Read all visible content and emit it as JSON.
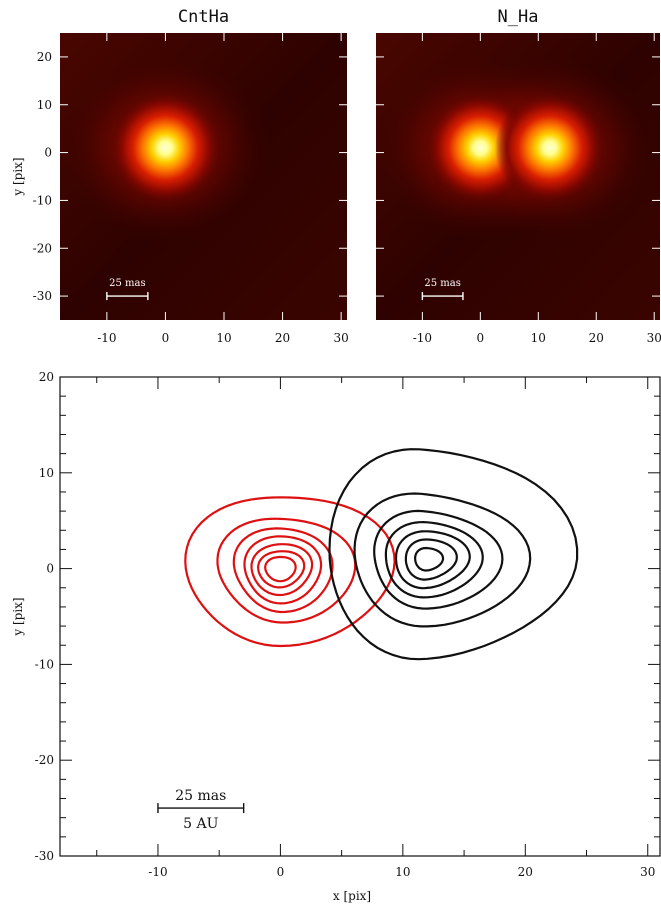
{
  "chart_data": [
    {
      "type": "heatmap",
      "title": "CntHa",
      "xlabel": "",
      "ylabel": "y [pix]",
      "xlim": [
        -18,
        31
      ],
      "ylim": [
        -35,
        25
      ],
      "xticks": [
        -10,
        0,
        10,
        20,
        30
      ],
      "yticks": [
        -30,
        -20,
        -10,
        0,
        10,
        20
      ],
      "sources": [
        {
          "x": 0,
          "y": 1,
          "peak": 1.0
        }
      ],
      "scale_bar": {
        "label": "25 mas",
        "x_start": -10,
        "x_end": -3,
        "y": -30
      }
    },
    {
      "type": "heatmap",
      "title": "N_Ha",
      "xlabel": "",
      "ylabel": "",
      "xlim": [
        -18,
        31
      ],
      "ylim": [
        -35,
        25
      ],
      "xticks": [
        -10,
        0,
        10,
        20,
        30
      ],
      "yticks": [
        -30,
        -20,
        -10,
        0,
        10,
        20
      ],
      "sources": [
        {
          "x": 0,
          "y": 1,
          "peak": 0.95
        },
        {
          "x": 12,
          "y": 1,
          "peak": 1.0
        }
      ],
      "scale_bar": {
        "label": "25 mas",
        "x_start": -10,
        "x_end": -3,
        "y": -30
      }
    },
    {
      "type": "contour",
      "title": "",
      "xlabel": "x [pix]",
      "ylabel": "y [pix]",
      "xlim": [
        -18,
        31
      ],
      "ylim": [
        -30,
        20
      ],
      "xticks": [
        -10,
        0,
        10,
        20,
        30
      ],
      "yticks": [
        -30,
        -20,
        -10,
        0,
        10,
        20
      ],
      "series": [
        {
          "color": "#dd1111",
          "center": [
            0,
            0
          ],
          "levels": [
            {
              "rx_left": 7.5,
              "rx_right": 9,
              "ry_top": 8,
              "ry_bottom": 8
            },
            {
              "rx_left": 5,
              "rx_right": 6,
              "ry_top": 5.5,
              "ry_bottom": 5.5
            },
            {
              "rx_left": 3.8,
              "rx_right": 4.3,
              "ry_top": 4.3,
              "ry_bottom": 4.3
            },
            {
              "rx_left": 3.0,
              "rx_right": 3.4,
              "ry_top": 3.4,
              "ry_bottom": 3.4
            },
            {
              "rx_left": 2.4,
              "rx_right": 2.6,
              "ry_top": 2.6,
              "ry_bottom": 2.6
            },
            {
              "rx_left": 1.8,
              "rx_right": 1.9,
              "ry_top": 1.9,
              "ry_bottom": 1.9
            },
            {
              "rx_left": 1.2,
              "rx_right": 1.2,
              "ry_top": 1.3,
              "ry_bottom": 1.3
            }
          ]
        },
        {
          "color": "#111111",
          "center": [
            12,
            1
          ],
          "levels": [
            {
              "rx_left": 8,
              "rx_right": 11.5,
              "ry_top": 12,
              "ry_bottom": 10.5
            },
            {
              "rx_left": 6,
              "rx_right": 8,
              "ry_top": 7,
              "ry_bottom": 7
            },
            {
              "rx_left": 4.5,
              "rx_right": 6,
              "ry_top": 5,
              "ry_bottom": 5
            },
            {
              "rx_left": 3.6,
              "rx_right": 4.5,
              "ry_top": 3.8,
              "ry_bottom": 3.8
            },
            {
              "rx_left": 2.7,
              "rx_right": 3.4,
              "ry_top": 2.9,
              "ry_bottom": 2.9
            },
            {
              "rx_left": 1.8,
              "rx_right": 2.3,
              "ry_top": 2.1,
              "ry_bottom": 2.1
            },
            {
              "rx_left": 1.0,
              "rx_right": 1.2,
              "ry_top": 1.2,
              "ry_bottom": 1.2
            }
          ]
        }
      ],
      "scale_bar": {
        "label_top": "25 mas",
        "label_bottom": "5 AU",
        "x_start": -10,
        "x_end": -3,
        "y": -25
      }
    }
  ]
}
